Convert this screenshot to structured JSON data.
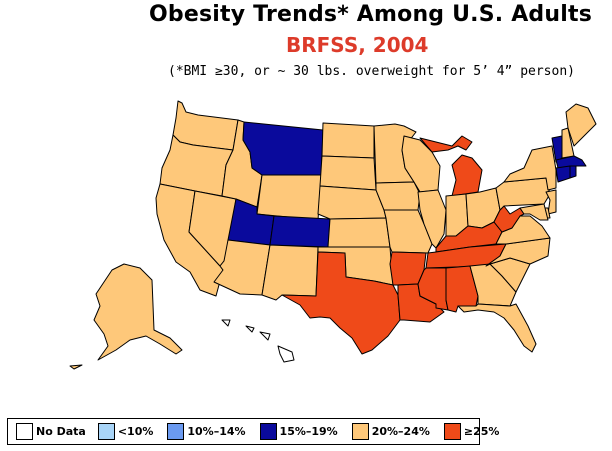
{
  "header": {
    "title": "Obesity Trends*  Among U.S. Adults",
    "subtitle": "BRFSS, 2004",
    "footnote": "(*BMI ≥30, or ~ 30 lbs. overweight for 5’ 4” person)"
  },
  "colors": {
    "no_data": "#ffffff",
    "lt10": "#a8d4f7",
    "10_14": "#6b9af0",
    "15_19": "#0a0a9c",
    "20_24": "#fec87a",
    "ge25": "#ef4a19",
    "border": "#000000"
  },
  "legend": [
    {
      "label": "No Data",
      "color": "#ffffff"
    },
    {
      "label": "<10%",
      "color": "#a8d4f7"
    },
    {
      "label": "10%–14%",
      "color": "#6b9af0"
    },
    {
      "label": "15%–19%",
      "color": "#0a0a9c"
    },
    {
      "label": "20%–24%",
      "color": "#fec87a"
    },
    {
      "label": "≥25%",
      "color": "#ef4a19"
    }
  ],
  "states": {
    "WA": "20_24",
    "OR": "20_24",
    "CA": "20_24",
    "NV": "20_24",
    "ID": "20_24",
    "MT": "15_19",
    "WY": "20_24",
    "UT": "15_19",
    "CO": "15_19",
    "AZ": "20_24",
    "NM": "20_24",
    "ND": "20_24",
    "SD": "20_24",
    "NE": "20_24",
    "KS": "20_24",
    "OK": "20_24",
    "TX": "ge25",
    "MN": "20_24",
    "IA": "20_24",
    "MO": "20_24",
    "AR": "ge25",
    "LA": "ge25",
    "WI": "20_24",
    "IL": "20_24",
    "MI": "ge25",
    "IN": "20_24",
    "OH": "20_24",
    "KY": "ge25",
    "TN": "ge25",
    "MS": "ge25",
    "AL": "ge25",
    "GA": "20_24",
    "FL": "20_24",
    "SC": "20_24",
    "NC": "20_24",
    "VA": "20_24",
    "WV": "ge25",
    "PA": "20_24",
    "NY": "20_24",
    "VT": "15_19",
    "NH": "20_24",
    "ME": "20_24",
    "MA": "15_19",
    "CT": "15_19",
    "RI": "15_19",
    "NJ": "20_24",
    "DE": "20_24",
    "MD": "20_24",
    "AK": "20_24",
    "HI": "no_data"
  }
}
